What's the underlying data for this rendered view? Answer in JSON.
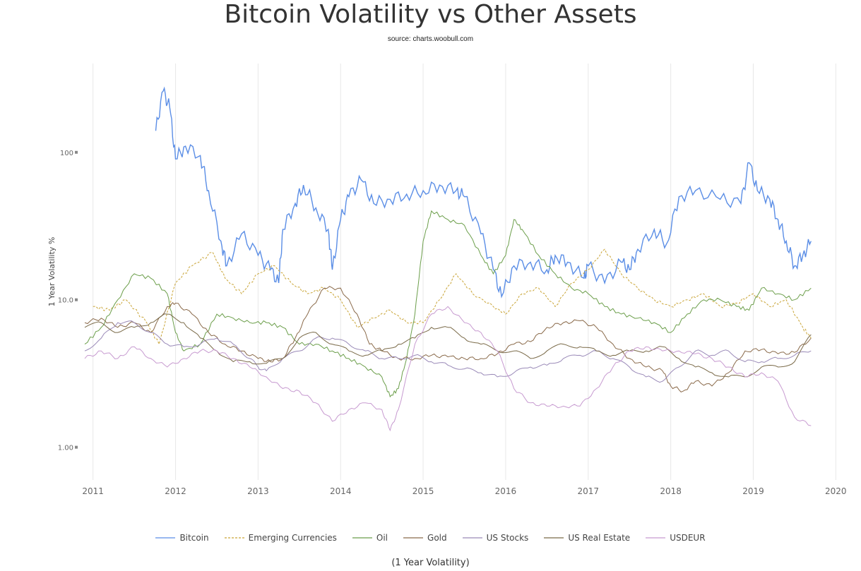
{
  "chart_data": {
    "type": "line",
    "title": "Bitcoin Volatility vs Other Assets",
    "subtitle": "source: charts.woobull.com",
    "ylabel": "1 Year Volatility %",
    "footer": "(1 Year Volatility)",
    "yscale": "log",
    "ylim": [
      0.6,
      400
    ],
    "xlim": [
      2010.9,
      2020.1
    ],
    "x_ticks": [
      "2011",
      "2012",
      "2013",
      "2014",
      "2015",
      "2016",
      "2017",
      "2018",
      "2019",
      "2020"
    ],
    "y_ticks": [
      {
        "value": 100,
        "label": "100"
      },
      {
        "value": 10,
        "label": "10.0"
      },
      {
        "value": 1,
        "label": "1.00"
      }
    ],
    "grid": "vertical",
    "legend_position": "bottom",
    "series": [
      {
        "name": "Bitcoin",
        "color": "#5b8ee6",
        "dash": "solid",
        "x": [
          2011.76,
          2011.85,
          2011.93,
          2012.0,
          2012.12,
          2012.3,
          2012.4,
          2012.55,
          2012.62,
          2012.8,
          2013.0,
          2013.15,
          2013.25,
          2013.3,
          2013.45,
          2013.55,
          2013.7,
          2013.85,
          2013.9,
          2014.0,
          2014.1,
          2014.25,
          2014.4,
          2014.6,
          2014.8,
          2015.0,
          2015.2,
          2015.4,
          2015.5,
          2015.7,
          2015.85,
          2015.95,
          2016.1,
          2016.3,
          2016.5,
          2016.6,
          2016.75,
          2016.95,
          2017.0,
          2017.2,
          2017.4,
          2017.5,
          2017.6,
          2017.8,
          2017.95,
          2018.1,
          2018.3,
          2018.6,
          2018.85,
          2018.95,
          2019.05,
          2019.2,
          2019.3,
          2019.4,
          2019.5,
          2019.6,
          2019.7
        ],
        "y": [
          140,
          260,
          200,
          90,
          110,
          95,
          55,
          25,
          17,
          28,
          20,
          16,
          13,
          30,
          45,
          60,
          42,
          30,
          16,
          35,
          50,
          65,
          45,
          48,
          52,
          55,
          60,
          55,
          50,
          28,
          16,
          10.5,
          17,
          18,
          16,
          20,
          18,
          14,
          17,
          13,
          18,
          16,
          22,
          30,
          24,
          50,
          55,
          48,
          45,
          85,
          55,
          48,
          35,
          25,
          17,
          20,
          25
        ]
      },
      {
        "name": "Emerging Currencies",
        "color": "#c9a436",
        "dash": "dashed",
        "x": [
          2011.0,
          2011.2,
          2011.4,
          2011.65,
          2011.8,
          2012.0,
          2012.2,
          2012.45,
          2012.6,
          2012.8,
          2013.0,
          2013.2,
          2013.4,
          2013.6,
          2013.8,
          2014.0,
          2014.2,
          2014.4,
          2014.6,
          2014.8,
          2015.0,
          2015.2,
          2015.4,
          2015.6,
          2015.85,
          2016.0,
          2016.2,
          2016.4,
          2016.6,
          2016.8,
          2017.0,
          2017.2,
          2017.4,
          2017.6,
          2017.8,
          2018.0,
          2018.2,
          2018.4,
          2018.6,
          2018.8,
          2019.0,
          2019.2,
          2019.4,
          2019.6,
          2019.7
        ],
        "y": [
          9,
          8.5,
          10,
          7,
          5,
          13,
          17,
          21,
          14,
          11,
          15,
          17,
          13,
          11,
          12,
          10,
          6.5,
          7.5,
          8.5,
          7,
          7,
          10,
          15,
          11,
          9,
          8,
          11,
          12,
          9,
          13,
          16,
          22,
          15,
          12,
          10,
          9,
          10,
          11,
          9,
          9.5,
          11,
          9,
          10,
          6.5,
          5.5
        ]
      },
      {
        "name": "Oil",
        "color": "#6b9e4a",
        "dash": "solid",
        "x": [
          2010.9,
          2011.1,
          2011.3,
          2011.5,
          2011.7,
          2011.9,
          2012.0,
          2012.1,
          2012.3,
          2012.5,
          2012.7,
          2012.9,
          2013.1,
          2013.3,
          2013.5,
          2013.7,
          2013.9,
          2014.1,
          2014.3,
          2014.5,
          2014.6,
          2014.7,
          2014.8,
          2014.9,
          2015.0,
          2015.1,
          2015.3,
          2015.5,
          2015.7,
          2015.85,
          2016.0,
          2016.1,
          2016.2,
          2016.4,
          2016.6,
          2016.8,
          2017.0,
          2017.2,
          2017.4,
          2017.6,
          2017.8,
          2018.0,
          2018.2,
          2018.4,
          2018.6,
          2018.8,
          2018.95,
          2019.1,
          2019.3,
          2019.5,
          2019.7
        ],
        "y": [
          5,
          6.5,
          10,
          15,
          14,
          11,
          6,
          4.5,
          5,
          8,
          7.5,
          7,
          7,
          6.5,
          5,
          5,
          4.5,
          4,
          3.5,
          3,
          2.2,
          2.5,
          4,
          8,
          25,
          40,
          35,
          32,
          20,
          15,
          20,
          35,
          30,
          20,
          15,
          12,
          11,
          9,
          8,
          7.5,
          7,
          6,
          8,
          10,
          10,
          9,
          8.5,
          12,
          11,
          10,
          12
        ]
      },
      {
        "name": "Gold",
        "color": "#8a6a4a",
        "dash": "solid",
        "x": [
          2010.9,
          2011.1,
          2011.3,
          2011.5,
          2011.7,
          2011.9,
          2012.0,
          2012.2,
          2012.4,
          2012.6,
          2012.8,
          2013.0,
          2013.15,
          2013.3,
          2013.45,
          2013.6,
          2013.8,
          2014.0,
          2014.2,
          2014.35,
          2014.5,
          2014.7,
          2014.9,
          2015.1,
          2015.3,
          2015.5,
          2015.7,
          2015.9,
          2016.1,
          2016.3,
          2016.5,
          2016.7,
          2016.9,
          2017.1,
          2017.3,
          2017.5,
          2017.7,
          2017.9,
          2018.0,
          2018.15,
          2018.3,
          2018.5,
          2018.7,
          2018.9,
          2019.1,
          2019.3,
          2019.5,
          2019.7
        ],
        "y": [
          7,
          7.5,
          6.5,
          7,
          6,
          9,
          9.5,
          8,
          6,
          5,
          4.5,
          4,
          3.8,
          4,
          5.5,
          8,
          12,
          12,
          8,
          5,
          4.5,
          4,
          4,
          4.2,
          4.1,
          4,
          4,
          4.3,
          5,
          5.2,
          6.5,
          7,
          7.2,
          6.5,
          5,
          4,
          3.5,
          3.3,
          2.6,
          2.4,
          2.8,
          2.6,
          3.2,
          4.5,
          4.6,
          4.3,
          4.4,
          5.5
        ]
      },
      {
        "name": "US Stocks",
        "color": "#9a8ab8",
        "dash": "solid",
        "x": [
          2010.9,
          2011.1,
          2011.3,
          2011.5,
          2011.7,
          2011.9,
          2012.1,
          2012.3,
          2012.5,
          2012.7,
          2012.9,
          2013.0,
          2013.1,
          2013.3,
          2013.5,
          2013.7,
          2013.9,
          2014.1,
          2014.3,
          2014.5,
          2014.7,
          2014.9,
          2015.1,
          2015.3,
          2015.5,
          2015.7,
          2015.9,
          2016.1,
          2016.3,
          2016.5,
          2016.7,
          2016.9,
          2017.1,
          2017.3,
          2017.5,
          2017.7,
          2017.9,
          2018.1,
          2018.3,
          2018.5,
          2018.7,
          2018.9,
          2019.1,
          2019.3,
          2019.5,
          2019.7
        ],
        "y": [
          4.5,
          5.5,
          7,
          7,
          6,
          5,
          4.8,
          5,
          5.5,
          5,
          4,
          3.5,
          3.3,
          4,
          4.5,
          5.5,
          5.5,
          5,
          4.5,
          4,
          4,
          4.2,
          3.8,
          3.6,
          3.4,
          3.2,
          3,
          3.2,
          3.5,
          3.6,
          4,
          4.2,
          4.5,
          4,
          3.5,
          3,
          2.8,
          3.5,
          4.5,
          4.2,
          4.5,
          3.8,
          3.8,
          4,
          4.2,
          4.5
        ]
      },
      {
        "name": "US Real Estate",
        "color": "#7a6a48",
        "dash": "solid",
        "x": [
          2010.9,
          2011.1,
          2011.3,
          2011.5,
          2011.7,
          2011.9,
          2012.1,
          2012.3,
          2012.5,
          2012.7,
          2012.9,
          2013.1,
          2013.3,
          2013.5,
          2013.7,
          2013.9,
          2014.1,
          2014.3,
          2014.5,
          2014.7,
          2014.9,
          2015.1,
          2015.3,
          2015.5,
          2015.7,
          2015.9,
          2016.1,
          2016.3,
          2016.5,
          2016.7,
          2016.9,
          2017.1,
          2017.3,
          2017.5,
          2017.7,
          2017.9,
          2018.1,
          2018.3,
          2018.5,
          2018.7,
          2018.9,
          2019.1,
          2019.3,
          2019.5,
          2019.7
        ],
        "y": [
          6.5,
          7,
          6,
          6.5,
          7,
          8,
          7,
          5.5,
          4.5,
          3.8,
          3.8,
          3.7,
          4,
          5.5,
          6,
          5,
          4.5,
          4.2,
          4.5,
          5,
          5.5,
          6.5,
          6.5,
          5.5,
          5,
          4.5,
          4.5,
          4,
          4.5,
          5,
          4.8,
          4.5,
          4.2,
          4.5,
          4.5,
          4.8,
          4,
          3.5,
          3.2,
          3,
          3,
          3.5,
          3.5,
          3.8,
          5.8
        ]
      },
      {
        "name": "USDEUR",
        "color": "#c79ad0",
        "dash": "solid",
        "x": [
          2010.9,
          2011.1,
          2011.3,
          2011.5,
          2011.7,
          2011.9,
          2012.1,
          2012.3,
          2012.5,
          2012.7,
          2012.9,
          2013.1,
          2013.3,
          2013.5,
          2013.7,
          2013.9,
          2014.1,
          2014.3,
          2014.5,
          2014.6,
          2014.7,
          2014.9,
          2015.1,
          2015.3,
          2015.5,
          2015.7,
          2015.9,
          2016.1,
          2016.3,
          2016.5,
          2016.7,
          2016.9,
          2017.1,
          2017.3,
          2017.5,
          2017.7,
          2017.9,
          2018.1,
          2018.3,
          2018.5,
          2018.7,
          2018.9,
          2019.1,
          2019.3,
          2019.5,
          2019.7
        ],
        "y": [
          4,
          4.5,
          4,
          4.8,
          4,
          3.5,
          4,
          4.5,
          4.5,
          4,
          3.5,
          3,
          2.5,
          2.4,
          2,
          1.5,
          1.8,
          2,
          1.8,
          1.3,
          1.8,
          5,
          8,
          9,
          7,
          6,
          4.5,
          2.5,
          2,
          1.9,
          1.9,
          1.9,
          2.5,
          3.5,
          4.5,
          4.8,
          4.5,
          4.5,
          4.3,
          4,
          3.5,
          3,
          3.2,
          2.8,
          1.6,
          1.4
        ]
      }
    ]
  }
}
